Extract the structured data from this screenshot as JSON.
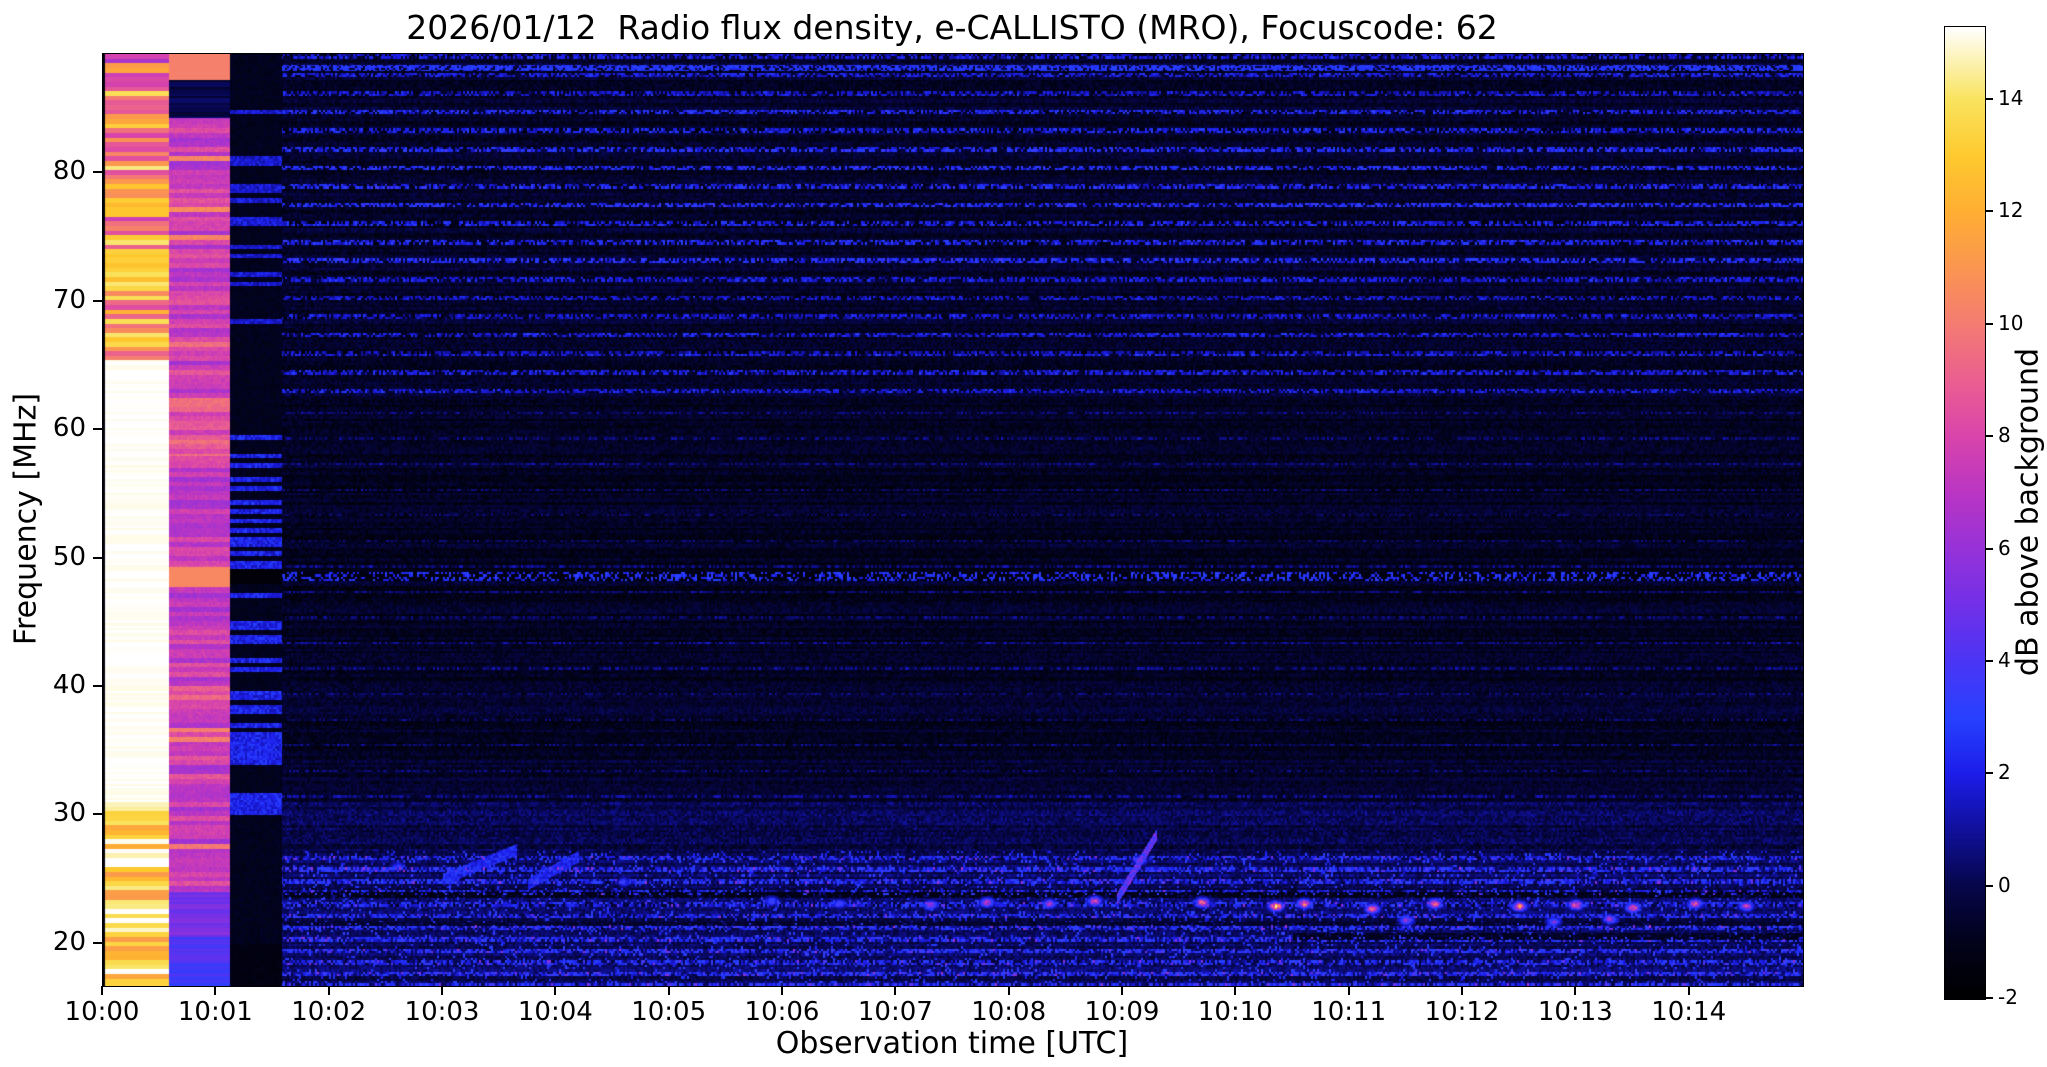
{
  "chart_data": {
    "type": "heatmap",
    "title": "2026/01/12  Radio flux density, e-CALLISTO (MRO), Focuscode: 62",
    "xlabel": "Observation time [UTC]",
    "ylabel": "Frequency [MHz]",
    "colorbar_label": "dB above background",
    "x_tick_labels": [
      "10:00",
      "10:01",
      "10:02",
      "10:03",
      "10:04",
      "10:05",
      "10:06",
      "10:07",
      "10:08",
      "10:09",
      "10:10",
      "10:11",
      "10:12",
      "10:13",
      "10:14"
    ],
    "y_tick_values": [
      20,
      30,
      40,
      50,
      60,
      70,
      80
    ],
    "colorbar_ticks": [
      14,
      12,
      10,
      8,
      6,
      4,
      2,
      0,
      -2
    ],
    "time_range_min": [
      0,
      15
    ],
    "freq_range_mhz": [
      16.7,
      89.3
    ],
    "value_range_db": [
      -2,
      15.3
    ],
    "grid": false,
    "colormap_stops": [
      [
        0.0,
        "#000000"
      ],
      [
        0.058,
        "#02021a"
      ],
      [
        0.116,
        "#06064a"
      ],
      [
        0.173,
        "#10109a"
      ],
      [
        0.231,
        "#1c1ce8"
      ],
      [
        0.289,
        "#2741ff"
      ],
      [
        0.347,
        "#4b35f5"
      ],
      [
        0.405,
        "#7130e8"
      ],
      [
        0.462,
        "#9632d8"
      ],
      [
        0.52,
        "#b935c4"
      ],
      [
        0.578,
        "#d844ab"
      ],
      [
        0.636,
        "#ea5f90"
      ],
      [
        0.694,
        "#f47b72"
      ],
      [
        0.751,
        "#fa9551"
      ],
      [
        0.809,
        "#ffae33"
      ],
      [
        0.867,
        "#fec92e"
      ],
      [
        0.925,
        "#f9e35d"
      ],
      [
        1.0,
        "#ffffff"
      ]
    ],
    "features": {
      "background_db": -0.7,
      "noise_db": 1.1,
      "bands": [
        {
          "name": "saturated-calibration-column",
          "t0": 0.02,
          "t1": 0.58,
          "white_f": [
            31,
            65.5
          ],
          "white_db": 15.4,
          "low_db": [
            11.2,
            15.5
          ],
          "high_db": [
            7.5,
            14.5
          ]
        },
        {
          "name": "pink-calibration-column",
          "t0": 0.58,
          "t1": 1.12,
          "base_db": [
            6.3,
            8.6
          ],
          "bright_line_f": [
            47.8,
            49.3
          ],
          "bright_line_db": 10.5,
          "top_orange_db": 10.2,
          "low_blue_db": 3.2
        },
        {
          "name": "dark-calibration-column",
          "t0": 1.12,
          "t1": 1.58,
          "base_db": -1.2,
          "blue_patch_db": 2.0
        }
      ],
      "upper_stripe_band": {
        "f0": 62,
        "f1": 89.3,
        "amp_db": 2.6
      },
      "mid_stripe_band": {
        "f0": 31,
        "f1": 62,
        "amp_db": 1.0
      },
      "low_activity_band": {
        "f0": 17,
        "f1": 27.2,
        "base_boost_db": 0.9,
        "row_amp_db": 2.6
      },
      "rfi_line_dark_f": [
        48.25,
        48.95
      ],
      "dark_lanes": [
        [
          1.6,
          15,
          23.55,
          24.05,
          -1.4
        ],
        [
          10.5,
          15,
          20.25,
          20.85,
          -1.1
        ],
        [
          1.6,
          15,
          21.35,
          21.7,
          -0.9
        ]
      ],
      "diagonal_streaks": [
        [
          8.95,
          23.5,
          9.3,
          28.5,
          5
        ],
        [
          3.0,
          25.0,
          3.65,
          27.3,
          2.6
        ],
        [
          3.75,
          24.6,
          4.2,
          26.8,
          2.4
        ]
      ],
      "bursts": [
        [
          7.3,
          23.0,
          6
        ],
        [
          7.8,
          23.2,
          7
        ],
        [
          8.35,
          23.1,
          6
        ],
        [
          8.75,
          23.3,
          8
        ],
        [
          9.15,
          26.5,
          5
        ],
        [
          9.7,
          23.2,
          9
        ],
        [
          10.35,
          22.9,
          12
        ],
        [
          10.6,
          23.1,
          10
        ],
        [
          11.2,
          22.7,
          9
        ],
        [
          11.75,
          23.1,
          9
        ],
        [
          12.5,
          22.9,
          10
        ],
        [
          13.0,
          23.0,
          9
        ],
        [
          13.5,
          22.8,
          9
        ],
        [
          14.05,
          23.1,
          8
        ],
        [
          14.5,
          22.9,
          7
        ],
        [
          2.6,
          26.0,
          3
        ],
        [
          3.1,
          25.5,
          3
        ],
        [
          4.6,
          24.8,
          3
        ],
        [
          5.9,
          23.3,
          4
        ],
        [
          6.5,
          23.1,
          4
        ],
        [
          11.5,
          21.8,
          6
        ],
        [
          12.8,
          21.7,
          5
        ],
        [
          13.3,
          21.9,
          6
        ]
      ]
    }
  }
}
